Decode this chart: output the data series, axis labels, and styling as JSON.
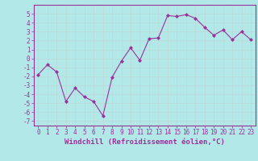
{
  "x": [
    0,
    1,
    2,
    3,
    4,
    5,
    6,
    7,
    8,
    9,
    10,
    11,
    12,
    13,
    14,
    15,
    16,
    17,
    18,
    19,
    20,
    21,
    22,
    23
  ],
  "y": [
    -1.8,
    -0.7,
    -1.5,
    -4.8,
    -3.3,
    -4.3,
    -4.8,
    -6.4,
    -2.1,
    -0.3,
    1.2,
    -0.2,
    2.2,
    2.3,
    4.8,
    4.7,
    4.9,
    4.5,
    3.5,
    2.6,
    3.2,
    2.1,
    3.0,
    2.1
  ],
  "line_color": "#993399",
  "marker": "D",
  "marker_size": 2,
  "bg_color": "#b2e8e8",
  "grid_color": "#c0d8d8",
  "xlabel": "Windchill (Refroidissement éolien,°C)",
  "ylim": [
    -7.5,
    6
  ],
  "xlim": [
    -0.5,
    23.5
  ],
  "yticks": [
    -7,
    -6,
    -5,
    -4,
    -3,
    -2,
    -1,
    0,
    1,
    2,
    3,
    4,
    5
  ],
  "xticks": [
    0,
    1,
    2,
    3,
    4,
    5,
    6,
    7,
    8,
    9,
    10,
    11,
    12,
    13,
    14,
    15,
    16,
    17,
    18,
    19,
    20,
    21,
    22,
    23
  ],
  "tick_fontsize": 5.5,
  "xlabel_fontsize": 6.5,
  "tick_color": "#993399",
  "label_color": "#993399",
  "spine_color": "#993399"
}
